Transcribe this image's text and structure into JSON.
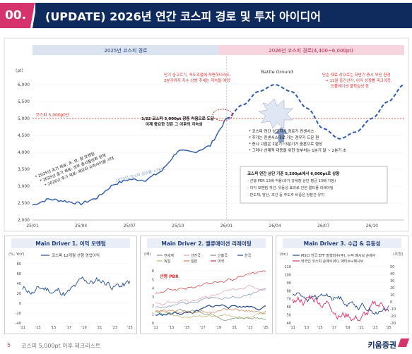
{
  "header": {
    "number": "00.",
    "title": "(UPDATE) 2026년 연간 코스피 경로 및 투자 아이디어"
  },
  "main_chart": {
    "band_2025": "2025년 코스피 경로",
    "band_2026": "2026년 코스피 경로(4,400~6,000pt)",
    "unit": "(pt)",
    "baseline_label": "코스피 5,000pt선",
    "series_label": "2025년 코스피 상승률 +76%",
    "battle_ground": "Battle Ground",
    "notes": {
      "top_center": "단기 숨고르기, 속도조절에 직면하더라도, 2분기까지 지수 상방 추세는 지속될 예정",
      "top_right": "단순 재료 상으로는 하반기 증시 부진 환경 → 11월 중간선거, 이익 성장률 피크아웃, 인플레이션 불확실성 등",
      "mid": "1/22 코스피 5,000pt 장중 처음으로 도달 이제 중요한 것은 그 이후의 지속성",
      "left_1": "* 2025년 초기 재료: 초, 방, 원 모멘텀",
      "left_2": "* 2025년 중기 재료: 정부 증시활성화 정책",
      "left_3": "* 2026년 후기 재료: 메모리 슈퍼사이클 기대",
      "center_1": "* 코스피 연간 상고하저 경로가 컨센서스",
      "center_2": "* 주가는 컨센서스대로 가는 경우가 드문 편",
      "center_3": "* 증시 고점은 2분기~3분기가 중론으로 형성",
      "center_4": "* 그러나 선제적 대응을 위한 승부처는 1분기 말 ~ 2분기 초",
      "box_title": "코스피 연간 상단 기준 5,200pt에서 6,000pt로 상향",
      "box_1": "- 선행 PER 13배 적용(과거 강세장 상단 평균 13배 가정)",
      "box_2": "- 이익 모멘텀 개선, 유동성 효과로 인한 멀티플 리레이팅",
      "box_3": "- 반도체, 방산, 조선 등 주도주 비중은 당분간 유지"
    },
    "x_ticks": [
      "25/01",
      "25/04",
      "25/07",
      "25/10",
      "26/01",
      "26/04",
      "26/07",
      "26/10"
    ],
    "y_ticks": [
      "2,000",
      "2,500",
      "3,000",
      "3,500",
      "4,000",
      "4,500",
      "5,000",
      "5,500",
      "6,000"
    ]
  },
  "driver1": {
    "title": "Main Driver 1. 이익 모멘텀",
    "unit": "(%, YoY)",
    "legend": "코스피 12개월 선행 영업이익",
    "y_ticks": [
      "80",
      "60",
      "40",
      "20",
      "0",
      "-20",
      "-40"
    ],
    "x_ticks": [
      "'11",
      "'13",
      "'15",
      "'17",
      "'19",
      "'21",
      "'23",
      "'25"
    ]
  },
  "driver2": {
    "title": "Main Driver 2. 밸류에이션 리레이팅",
    "unit": "(배)",
    "legend": [
      "전세계",
      "선진국",
      "신흥국",
      "한국",
      "독일",
      "일본",
      "미국"
    ],
    "label_pbr": "선행 PBR",
    "y_ticks": [
      "6",
      "5",
      "4",
      "3",
      "2",
      "1",
      "0"
    ],
    "x_ticks": [
      "'11",
      "'13",
      "'15",
      "'17",
      "'19",
      "'21",
      "'23",
      "'25"
    ]
  },
  "driver3": {
    "title": "Main Driver 3. 수급 & 유동성",
    "unit_left": "(bn)",
    "unit_right": "(조원)",
    "legend_1": "MSCI 한국 ETF 발행좌수(주), 누적 패시브 순매수",
    "legend_2": "외국인 코스피 순매수(주), 액티브+패시브",
    "y_left": [
      "110",
      "100",
      "90",
      "80",
      "70",
      "60",
      "50",
      "40"
    ],
    "y_right": [
      "50",
      "40",
      "30",
      "20",
      "10",
      "0",
      "-10",
      "-20",
      "-30"
    ],
    "x_ticks": [
      "'11",
      "'13",
      "'15",
      "'17",
      "'19",
      "'21",
      "'23",
      "'25"
    ]
  },
  "footer": {
    "page": "5",
    "label": "코스피 5,000pt 이후 체크리스트",
    "brand": "키움증권"
  },
  "chart_data": [
    {
      "type": "line",
      "x": [
        "25/01",
        "25/02",
        "25/03",
        "25/04",
        "25/05",
        "25/06",
        "25/07",
        "25/08",
        "25/09",
        "25/10",
        "25/11",
        "25/12",
        "26/01"
      ],
      "series": [
        {
          "name": "",
          "values": [
            2440,
            2620,
            2560,
            2480,
            2660,
            3050,
            3200,
            3180,
            3450,
            4050,
            4000,
            4200,
            5000
          ]
        }
      ],
      "projection": {
        "x": [
          "26/01",
          "26/02",
          "26/03",
          "26/04",
          "26/05",
          "26/06",
          "26/07",
          "26/08",
          "26/09",
          "26/10",
          "26/11",
          "26/12"
        ],
        "values": [
          5000,
          5400,
          5800,
          6000,
          5800,
          5300,
          4700,
          4400,
          4600,
          5000,
          5500,
          6000
        ]
      },
      "ylim": [
        2000,
        6000
      ]
    }
  ]
}
